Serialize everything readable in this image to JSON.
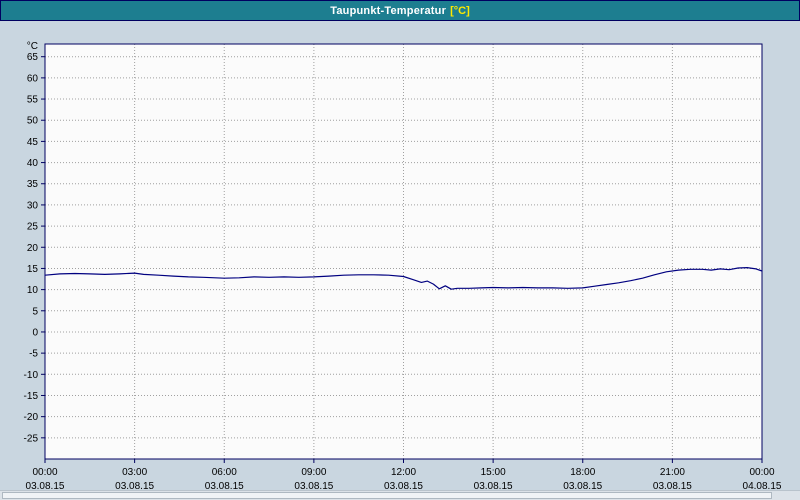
{
  "window": {
    "title": "Taupunkt-Temperatur",
    "title_unit": "[°C]"
  },
  "colors": {
    "titlebar_bg": "#1d7e90",
    "titlebar_border": "#000060",
    "background": "#c9d6e0",
    "plot_bg": "#fbfbfb",
    "grid": "#a0a0a0",
    "axis": "#000060",
    "label": "#000000",
    "line": "#000080"
  },
  "chart_data": {
    "type": "line",
    "title": "Taupunkt-Temperatur [°C]",
    "xlabel": "",
    "ylabel": "°C",
    "ylim": [
      -30,
      68
    ],
    "xlim": [
      0,
      24
    ],
    "grid": true,
    "legend": "none",
    "line_color": "#000080",
    "yticks": [
      65,
      60,
      55,
      50,
      45,
      40,
      35,
      30,
      25,
      20,
      15,
      10,
      5,
      0,
      -5,
      -10,
      -15,
      -20,
      -25
    ],
    "xticks": [
      {
        "hour": 0,
        "time": "00:00",
        "date": "03.08.15"
      },
      {
        "hour": 3,
        "time": "03:00",
        "date": "03.08.15"
      },
      {
        "hour": 6,
        "time": "06:00",
        "date": "03.08.15"
      },
      {
        "hour": 9,
        "time": "09:00",
        "date": "03.08.15"
      },
      {
        "hour": 12,
        "time": "12:00",
        "date": "03.08.15"
      },
      {
        "hour": 15,
        "time": "15:00",
        "date": "03.08.15"
      },
      {
        "hour": 18,
        "time": "18:00",
        "date": "03.08.15"
      },
      {
        "hour": 21,
        "time": "21:00",
        "date": "03.08.15"
      },
      {
        "hour": 24,
        "time": "00:00",
        "date": "04.08.15"
      }
    ],
    "series_name": "Taupunkt-Temperatur",
    "points": [
      [
        0,
        13.4
      ],
      [
        0.5,
        13.7
      ],
      [
        1,
        13.8
      ],
      [
        1.5,
        13.7
      ],
      [
        2,
        13.6
      ],
      [
        2.5,
        13.7
      ],
      [
        3,
        13.9
      ],
      [
        3.3,
        13.6
      ],
      [
        3.8,
        13.4
      ],
      [
        4.3,
        13.2
      ],
      [
        4.8,
        13.0
      ],
      [
        5.3,
        12.9
      ],
      [
        6,
        12.7
      ],
      [
        6.5,
        12.8
      ],
      [
        7,
        13.0
      ],
      [
        7.5,
        12.9
      ],
      [
        8,
        13.0
      ],
      [
        8.5,
        12.9
      ],
      [
        9,
        13.0
      ],
      [
        9.5,
        13.2
      ],
      [
        10,
        13.4
      ],
      [
        10.5,
        13.5
      ],
      [
        11,
        13.5
      ],
      [
        11.5,
        13.4
      ],
      [
        12,
        13.1
      ],
      [
        12.3,
        12.4
      ],
      [
        12.6,
        11.7
      ],
      [
        12.8,
        12.0
      ],
      [
        13.0,
        11.3
      ],
      [
        13.2,
        10.2
      ],
      [
        13.4,
        10.9
      ],
      [
        13.6,
        10.1
      ],
      [
        13.8,
        10.3
      ],
      [
        14.2,
        10.3
      ],
      [
        14.6,
        10.4
      ],
      [
        15,
        10.5
      ],
      [
        15.5,
        10.4
      ],
      [
        16,
        10.5
      ],
      [
        16.5,
        10.4
      ],
      [
        17,
        10.4
      ],
      [
        17.5,
        10.3
      ],
      [
        18,
        10.4
      ],
      [
        18.4,
        10.8
      ],
      [
        18.8,
        11.2
      ],
      [
        19.2,
        11.6
      ],
      [
        19.6,
        12.1
      ],
      [
        20,
        12.7
      ],
      [
        20.4,
        13.5
      ],
      [
        20.8,
        14.2
      ],
      [
        21.2,
        14.6
      ],
      [
        21.6,
        14.8
      ],
      [
        22,
        14.8
      ],
      [
        22.3,
        14.6
      ],
      [
        22.6,
        14.9
      ],
      [
        22.9,
        14.7
      ],
      [
        23.2,
        15.1
      ],
      [
        23.5,
        15.2
      ],
      [
        23.8,
        14.9
      ],
      [
        24,
        14.4
      ]
    ]
  }
}
